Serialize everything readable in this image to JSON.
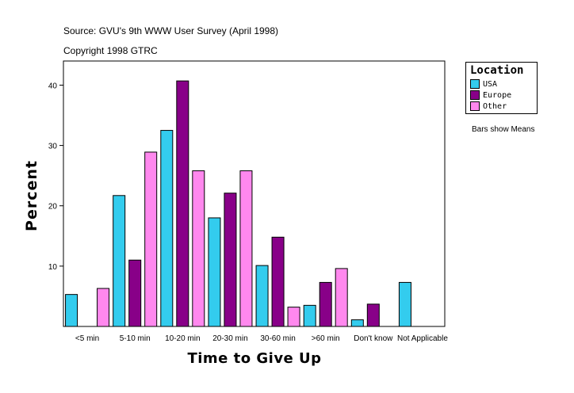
{
  "header": {
    "source": "Source: GVU's 9th WWW User Survey (April 1998)",
    "copyright": "Copyright 1998 GTRC"
  },
  "legend": {
    "title": "Location",
    "items": [
      {
        "label": "USA",
        "color": "#33ccee"
      },
      {
        "label": "Europe",
        "color": "#880088"
      },
      {
        "label": "Other",
        "color": "#ff88ee"
      }
    ]
  },
  "note": "Bars show Means",
  "chart_data": {
    "type": "bar",
    "title": "",
    "xlabel": "Time to Give Up",
    "ylabel": "Percent",
    "ylim": [
      0,
      44
    ],
    "yticks": [
      10,
      20,
      30,
      40
    ],
    "categories": [
      "<5 min",
      "5-10 min",
      "10-20 min",
      "20-30 min",
      "30-60 min",
      ">60 min",
      "Don't know",
      "Not Applicable"
    ],
    "series": [
      {
        "name": "USA",
        "color": "#33ccee",
        "values": [
          5.3,
          21.7,
          32.5,
          18.0,
          10.1,
          3.5,
          1.1,
          7.3
        ]
      },
      {
        "name": "Europe",
        "color": "#880088",
        "values": [
          0,
          11.0,
          40.7,
          22.1,
          14.8,
          7.3,
          3.7,
          0
        ]
      },
      {
        "name": "Other",
        "color": "#ff88ee",
        "values": [
          6.3,
          28.9,
          25.8,
          25.8,
          3.2,
          9.6,
          0,
          0
        ]
      }
    ]
  }
}
